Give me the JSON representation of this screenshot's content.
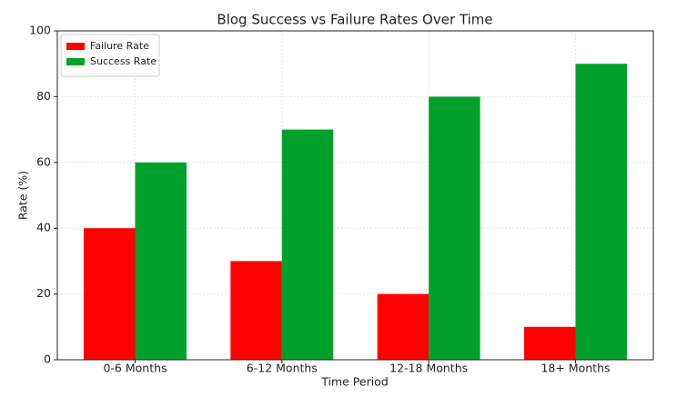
{
  "chart_data": {
    "type": "bar",
    "title": "Blog Success vs Failure Rates Over Time",
    "x_label": "Time Period",
    "y_label": "Rate (%)",
    "categories": [
      "0-6 Months",
      "6-12 Months",
      "12-18 Months",
      "18+ Months"
    ],
    "series": [
      {
        "name": "Failure Rate",
        "color": "#ff0000",
        "values": [
          40,
          30,
          20,
          10
        ]
      },
      {
        "name": "Success Rate",
        "color": "#00a12a",
        "values": [
          60,
          70,
          80,
          90
        ]
      }
    ],
    "ylim": [
      0,
      100
    ],
    "yticks": [
      0,
      20,
      40,
      60,
      80,
      100
    ],
    "grid": true,
    "legend": "upper left"
  }
}
